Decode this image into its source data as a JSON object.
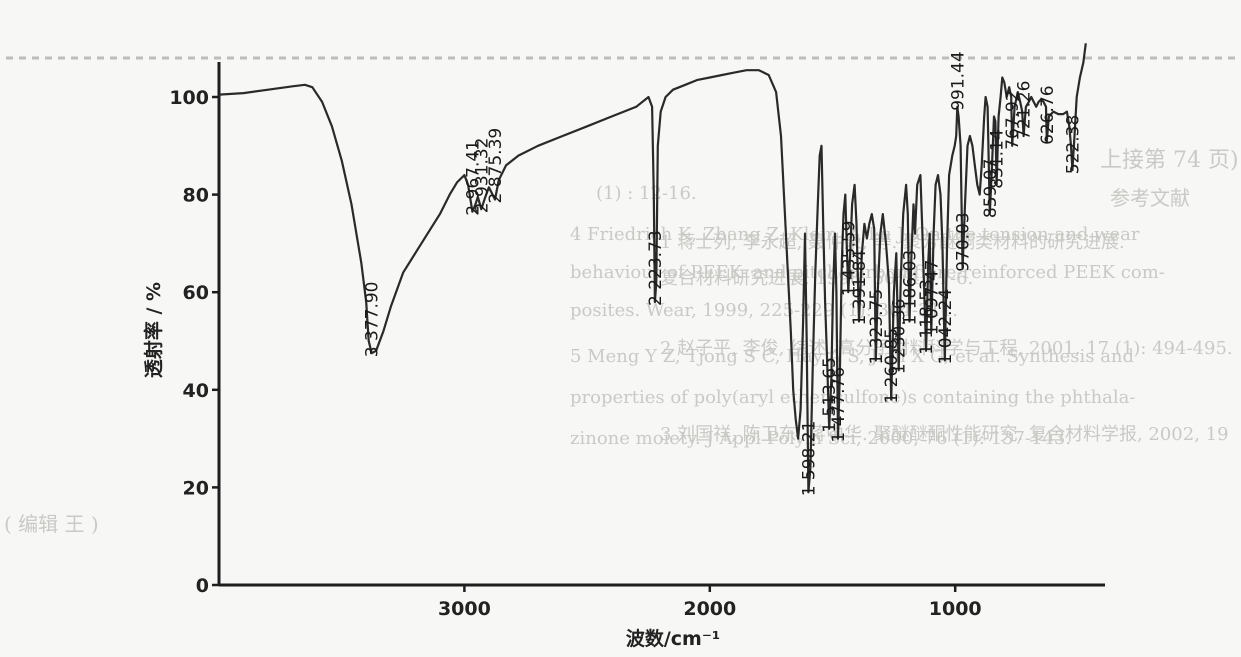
{
  "bleed_through": [
    "(1) : 12-16.",
    "4  Friedrich K, Zhang Z, Klein R, Lu J. On the tension and wear",
    "behaviour of PEEK- and pitch-carbon fibre-reinforced PEEK com-",
    "posites. Wear, 1999, 225-229 (1): 304-311.",
    "5  Meng Y Z, Tjong S C, Hay A S, Jian X G, et al. Synthesis and",
    "properties of poly(aryl ether sulfone)s containing the phthala-",
    "zinone moiety. J Appl Polym Sci, 2000, 76 (1): 137-143.",
    "上接第 74 页)",
    "参考文献",
    "1  蒋士列, 李永超, 聂仲泉, 等. 聚芳醚酮类材料的研究进展.",
    "复合材料研究进展, 1998, 50 (4): 1-6.",
    "2  赵子平, 李俊, 综述. 高分子材料科学与工程, 2001, 17 (1): 494-495.",
    "3  刘国祥, 陈卫东, 蒋中华. 聚醚醚酮性能研究. 复合材料学报, 2002, 19",
    "( 编辑   王   ) "
  ],
  "chart_data": {
    "type": "line",
    "title": "",
    "xlabel": "波数/cm⁻¹",
    "ylabel": "透射率 / %",
    "xlim": [
      4000,
      400
    ],
    "ylim": [
      0,
      105
    ],
    "x_reversed": true,
    "xticks": [
      3000,
      2000,
      1000
    ],
    "xtick_labels": [
      "3000",
      "2000",
      "1000"
    ],
    "yticks": [
      0,
      20,
      40,
      60,
      80,
      100
    ],
    "ytick_labels": [
      "0",
      "20",
      "40",
      "60",
      "80",
      "100"
    ],
    "grid": false,
    "legend": "none",
    "line_color": "#2a2a2a",
    "series": [
      {
        "points": [
          [
            4000,
            100.5
          ],
          [
            3900,
            100.8
          ],
          [
            3800,
            101.5
          ],
          [
            3700,
            102.2
          ],
          [
            3650,
            102.5
          ],
          [
            3620,
            102.0
          ],
          [
            3580,
            99.0
          ],
          [
            3540,
            94.0
          ],
          [
            3500,
            87.0
          ],
          [
            3460,
            78.0
          ],
          [
            3420,
            66.0
          ],
          [
            3400,
            58.0
          ],
          [
            3390,
            50.0
          ],
          [
            3377.9,
            47.5
          ],
          [
            3360,
            48.0
          ],
          [
            3330,
            52.0
          ],
          [
            3300,
            57.0
          ],
          [
            3250,
            64.0
          ],
          [
            3200,
            68.0
          ],
          [
            3150,
            72.0
          ],
          [
            3100,
            76.0
          ],
          [
            3060,
            80.0
          ],
          [
            3030,
            82.5
          ],
          [
            3000,
            84.0
          ],
          [
            2985,
            82.0
          ],
          [
            2967.41,
            76.5
          ],
          [
            2955,
            78.0
          ],
          [
            2945,
            79.5
          ],
          [
            2931.32,
            77.0
          ],
          [
            2915,
            79.5
          ],
          [
            2900,
            81.5
          ],
          [
            2890,
            80.5
          ],
          [
            2875.39,
            79.0
          ],
          [
            2860,
            83.0
          ],
          [
            2830,
            86.0
          ],
          [
            2780,
            88.0
          ],
          [
            2700,
            90.0
          ],
          [
            2600,
            92.0
          ],
          [
            2500,
            94.0
          ],
          [
            2400,
            96.0
          ],
          [
            2300,
            98.0
          ],
          [
            2250,
            100.0
          ],
          [
            2235,
            98.0
          ],
          [
            2228,
            80.0
          ],
          [
            2223.73,
            58.0
          ],
          [
            2218,
            62.0
          ],
          [
            2212,
            90.0
          ],
          [
            2200,
            97.0
          ],
          [
            2180,
            100.0
          ],
          [
            2150,
            101.5
          ],
          [
            2100,
            102.5
          ],
          [
            2050,
            103.5
          ],
          [
            2000,
            104.0
          ],
          [
            1950,
            104.5
          ],
          [
            1900,
            105.0
          ],
          [
            1850,
            105.5
          ],
          [
            1800,
            105.5
          ],
          [
            1760,
            104.5
          ],
          [
            1730,
            101.0
          ],
          [
            1710,
            92.0
          ],
          [
            1690,
            72.0
          ],
          [
            1670,
            52.0
          ],
          [
            1660,
            40.0
          ],
          [
            1650,
            34.0
          ],
          [
            1640,
            30.0
          ],
          [
            1630,
            36.0
          ],
          [
            1620,
            54.0
          ],
          [
            1612,
            72.0
          ],
          [
            1605,
            50.0
          ],
          [
            1598.21,
            19.0
          ],
          [
            1590,
            24.0
          ],
          [
            1580,
            46.0
          ],
          [
            1570,
            64.0
          ],
          [
            1560,
            78.0
          ],
          [
            1552,
            88.0
          ],
          [
            1545,
            90.0
          ],
          [
            1538,
            74.0
          ],
          [
            1530,
            58.0
          ],
          [
            1522,
            46.0
          ],
          [
            1513.65,
            32.0
          ],
          [
            1505,
            42.0
          ],
          [
            1498,
            60.0
          ],
          [
            1490,
            72.0
          ],
          [
            1484,
            60.0
          ],
          [
            1477.76,
            30.0
          ],
          [
            1470,
            44.0
          ],
          [
            1462,
            66.0
          ],
          [
            1455,
            76.0
          ],
          [
            1448,
            80.0
          ],
          [
            1442,
            70.0
          ],
          [
            1435.59,
            60.0
          ],
          [
            1428,
            68.0
          ],
          [
            1420,
            78.0
          ],
          [
            1410,
            82.0
          ],
          [
            1402,
            74.0
          ],
          [
            1391.84,
            54.0
          ],
          [
            1380,
            68.0
          ],
          [
            1370,
            74.0
          ],
          [
            1360,
            71.0
          ],
          [
            1350,
            74.0
          ],
          [
            1340,
            76.0
          ],
          [
            1330,
            73.0
          ],
          [
            1323.75,
            46.0
          ],
          [
            1316,
            60.0
          ],
          [
            1305,
            72.0
          ],
          [
            1295,
            76.0
          ],
          [
            1282,
            70.0
          ],
          [
            1270,
            62.0
          ],
          [
            1260.85,
            38.0
          ],
          [
            1250,
            60.0
          ],
          [
            1240,
            68.0
          ],
          [
            1230.36,
            44.0
          ],
          [
            1222,
            62.0
          ],
          [
            1212,
            76.0
          ],
          [
            1200,
            82.0
          ],
          [
            1193,
            76.0
          ],
          [
            1186.03,
            54.0
          ],
          [
            1178,
            68.0
          ],
          [
            1170,
            78.0
          ],
          [
            1164,
            72.0
          ],
          [
            1155,
            82.0
          ],
          [
            1142,
            84.0
          ],
          [
            1135,
            74.0
          ],
          [
            1118.53,
            48.0
          ],
          [
            1110,
            66.0
          ],
          [
            1104,
            72.0
          ],
          [
            1097.47,
            52.0
          ],
          [
            1088,
            72.0
          ],
          [
            1080,
            82.0
          ],
          [
            1070,
            84.0
          ],
          [
            1060,
            80.0
          ],
          [
            1052,
            70.0
          ],
          [
            1042.24,
            46.0
          ],
          [
            1033,
            70.0
          ],
          [
            1025,
            84.0
          ],
          [
            1012,
            88.0
          ],
          [
            1002,
            90.0
          ],
          [
            996,
            92.0
          ],
          [
            991.44,
            98.0
          ],
          [
            986,
            96.0
          ],
          [
            978,
            90.0
          ],
          [
            970.03,
            65.0
          ],
          [
            960,
            78.0
          ],
          [
            950,
            90.0
          ],
          [
            940,
            92.0
          ],
          [
            930,
            90.0
          ],
          [
            920,
            86.0
          ],
          [
            910,
            82.0
          ],
          [
            900,
            80.0
          ],
          [
            892,
            86.0
          ],
          [
            882,
            96.0
          ],
          [
            876,
            100.0
          ],
          [
            868,
            98.0
          ],
          [
            859.07,
            76.0
          ],
          [
            850,
            86.0
          ],
          [
            842,
            96.0
          ],
          [
            836,
            95.0
          ],
          [
            831.14,
            82.0
          ],
          [
            823,
            96.0
          ],
          [
            815,
            100.0
          ],
          [
            808,
            104.0
          ],
          [
            800,
            103.0
          ],
          [
            790,
            100.0
          ],
          [
            780,
            102.0
          ],
          [
            772,
            100.0
          ],
          [
            767.92,
            90.0
          ],
          [
            758,
            98.0
          ],
          [
            745,
            101.0
          ],
          [
            735,
            99.0
          ],
          [
            727,
            97.0
          ],
          [
            721.26,
            92.0
          ],
          [
            712,
            98.0
          ],
          [
            700,
            99.0
          ],
          [
            690,
            100.0
          ],
          [
            680,
            99.0
          ],
          [
            670,
            98.0
          ],
          [
            660,
            99.0
          ],
          [
            650,
            99.5
          ],
          [
            640,
            99.0
          ],
          [
            630,
            98.0
          ],
          [
            626.76,
            91.0
          ],
          [
            618,
            96.0
          ],
          [
            600,
            97.0
          ],
          [
            580,
            96.5
          ],
          [
            560,
            96.5
          ],
          [
            545,
            97.0
          ],
          [
            535,
            94.0
          ],
          [
            528,
            90.0
          ],
          [
            522.38,
            85.0
          ],
          [
            515,
            91.0
          ],
          [
            505,
            100.0
          ],
          [
            492,
            104.0
          ],
          [
            478,
            107.0
          ],
          [
            468,
            111.0
          ]
        ]
      }
    ],
    "peak_labels": [
      {
        "x": 3377.9,
        "text": "3 377.90"
      },
      {
        "x": 2967.41,
        "text": "2 967.41"
      },
      {
        "x": 2931.32,
        "text": "2 931.32"
      },
      {
        "x": 2875.39,
        "text": "2 875.39"
      },
      {
        "x": 2223.73,
        "text": "2 223.73"
      },
      {
        "x": 1598.21,
        "text": "1 598.21"
      },
      {
        "x": 1513.65,
        "text": "1 513.65"
      },
      {
        "x": 1477.76,
        "text": "1 477.76"
      },
      {
        "x": 1435.59,
        "text": "1 435.59"
      },
      {
        "x": 1391.84,
        "text": "1 391.84"
      },
      {
        "x": 1323.75,
        "text": "1 323.75"
      },
      {
        "x": 1260.85,
        "text": "1 260.85"
      },
      {
        "x": 1230.36,
        "text": "1 230.36"
      },
      {
        "x": 1186.03,
        "text": "1 186.03"
      },
      {
        "x": 1118.53,
        "text": "1 118.53"
      },
      {
        "x": 1097.47,
        "text": "1 097.47"
      },
      {
        "x": 1042.24,
        "text": "1 042.24"
      },
      {
        "x": 991.44,
        "text": "991.44"
      },
      {
        "x": 970.03,
        "text": "970.03"
      },
      {
        "x": 859.07,
        "text": "859.07"
      },
      {
        "x": 831.14,
        "text": "831.14"
      },
      {
        "x": 767.92,
        "text": "767.92"
      },
      {
        "x": 721.26,
        "text": "721.26"
      },
      {
        "x": 626.76,
        "text": "626.76"
      },
      {
        "x": 522.38,
        "text": "522.38"
      }
    ]
  }
}
